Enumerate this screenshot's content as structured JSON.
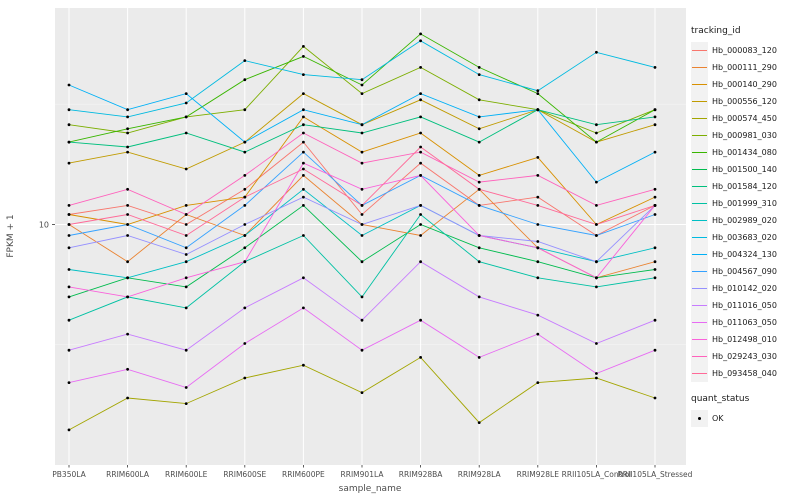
{
  "figure": {
    "panel_bg": "#EBEBEB",
    "grid_color": "#FFFFFF",
    "axis_text_color": "#4D4D4D",
    "tick_mark_color": "#333333",
    "point_color": "#000000"
  },
  "chart_data": {
    "type": "line",
    "title": "",
    "xlabel": "sample_name",
    "ylabel": "FPKM + 1",
    "y_scale": "log10",
    "ylim_log10": [
      0,
      1.9
    ],
    "y_ticks": [
      {
        "value": 10,
        "label": "10"
      }
    ],
    "grid": "on",
    "categories": [
      "PB350LA",
      "RRIM600LA",
      "RRIM600LE",
      "RRIM600SE",
      "RRIM600PE",
      "RRIM901LA",
      "RRIM928BA",
      "RRIM928LA",
      "RRIM928LE",
      "RRII105LA_Control",
      "RRII105LA_Stressed"
    ],
    "series": [
      {
        "name": "Hb_000083_120",
        "color": "#F8766D",
        "values": [
          11,
          12,
          10,
          14,
          22,
          11,
          18,
          12,
          13,
          9,
          12
        ]
      },
      {
        "name": "Hb_000111_290",
        "color": "#EA8331",
        "values": [
          10,
          7,
          11,
          9,
          16,
          10,
          9,
          14,
          8,
          6,
          7
        ]
      },
      {
        "name": "Hb_000140_290",
        "color": "#D89000",
        "values": [
          11,
          10,
          12,
          13,
          28,
          20,
          24,
          16,
          19,
          10,
          13
        ]
      },
      {
        "name": "Hb_000556_120",
        "color": "#C09B00",
        "values": [
          18,
          20,
          17,
          22,
          35,
          26,
          33,
          25,
          30,
          22,
          26
        ]
      },
      {
        "name": "Hb_000574_450",
        "color": "#A3A500",
        "values": [
          1.4,
          1.9,
          1.8,
          2.3,
          2.6,
          2.0,
          2.8,
          1.5,
          2.2,
          2.3,
          1.9
        ]
      },
      {
        "name": "Hb_000981_030",
        "color": "#7CAE00",
        "values": [
          26,
          24,
          28,
          30,
          55,
          35,
          45,
          33,
          30,
          24,
          30
        ]
      },
      {
        "name": "Hb_001434_080",
        "color": "#39B600",
        "values": [
          22,
          25,
          28,
          40,
          50,
          38,
          62,
          45,
          35,
          22,
          30
        ]
      },
      {
        "name": "Hb_001500_140",
        "color": "#00BB4E",
        "values": [
          5,
          6,
          5.5,
          8,
          12,
          7,
          10,
          8,
          7,
          6,
          6.5
        ]
      },
      {
        "name": "Hb_001584_120",
        "color": "#00BF7D",
        "values": [
          22,
          21,
          24,
          20,
          26,
          24,
          28,
          22,
          30,
          26,
          28
        ]
      },
      {
        "name": "Hb_001999_310",
        "color": "#00C1A3",
        "values": [
          4,
          5,
          4.5,
          7,
          9,
          5,
          11,
          7,
          6,
          5.5,
          6
        ]
      },
      {
        "name": "Hb_002989_020",
        "color": "#00BFC4",
        "values": [
          6.5,
          6,
          7,
          9,
          14,
          9,
          12,
          9,
          8,
          7,
          8
        ]
      },
      {
        "name": "Hb_003683_020",
        "color": "#00BAE0",
        "values": [
          30,
          28,
          32,
          48,
          42,
          40,
          58,
          42,
          36,
          52,
          45
        ]
      },
      {
        "name": "Hb_004324_130",
        "color": "#00B0F6",
        "values": [
          38,
          30,
          35,
          22,
          30,
          26,
          35,
          28,
          30,
          15,
          20
        ]
      },
      {
        "name": "Hb_004567_090",
        "color": "#35A2FF",
        "values": [
          9,
          10,
          8,
          12,
          20,
          12,
          16,
          12,
          10,
          9,
          11
        ]
      },
      {
        "name": "Hb_010142_020",
        "color": "#9590FF",
        "values": [
          8,
          9,
          7.5,
          10,
          13,
          10,
          12,
          9,
          8.5,
          7,
          12
        ]
      },
      {
        "name": "Hb_011016_050",
        "color": "#C77CFF",
        "values": [
          3,
          3.5,
          3,
          4.5,
          6,
          4,
          7,
          5,
          4.2,
          3.2,
          4
        ]
      },
      {
        "name": "Hb_011063_050",
        "color": "#E76BF3",
        "values": [
          2.2,
          2.5,
          2.1,
          3.2,
          4.5,
          3,
          4,
          2.8,
          3.5,
          2.4,
          3
        ]
      },
      {
        "name": "Hb_012498_010",
        "color": "#FA62DB",
        "values": [
          5.5,
          5,
          6,
          7,
          18,
          14,
          16,
          9,
          8,
          6,
          12
        ]
      },
      {
        "name": "Hb_029243_030",
        "color": "#FF62BC",
        "values": [
          12,
          14,
          11,
          16,
          24,
          18,
          20,
          15,
          16,
          12,
          14
        ]
      },
      {
        "name": "Hb_093458_040",
        "color": "#FF6A98",
        "values": [
          10,
          11,
          9,
          13,
          17,
          12,
          21,
          14,
          12,
          10,
          12
        ]
      }
    ],
    "legend": {
      "position": "right",
      "color_title": "tracking_id",
      "shape_title": "quant_status",
      "shape_entries": [
        "OK"
      ]
    }
  }
}
